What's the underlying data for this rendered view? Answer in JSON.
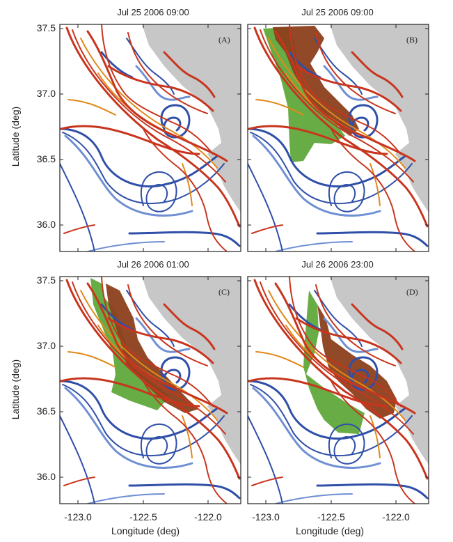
{
  "colors": {
    "land": "#c7c7c7",
    "blue": "#2f4fa8",
    "lightblue": "#6f8fd3",
    "red": "#c8351e",
    "orange": "#e08a1a",
    "green": "#5fa83a",
    "brown": "#8b3f1c"
  },
  "axes": {
    "ylabel": "Latitude (deg)",
    "xlabel": "Longitude (deg)",
    "yticks": [
      "37.5",
      "37.0",
      "36.5",
      "36.0"
    ],
    "xticks": [
      "-123.0",
      "-122.5",
      "-122.0"
    ]
  },
  "chart_data": [
    {
      "type": "map",
      "title": "Jul 25 2006 09:00",
      "label": "(A)",
      "xlim": [
        -123.1,
        -121.7
      ],
      "ylim": [
        35.8,
        37.5
      ],
      "patches": []
    },
    {
      "type": "map",
      "title": "Jul 25 2006 09:00",
      "label": "(B)",
      "xlim": [
        -123.1,
        -121.7
      ],
      "ylim": [
        35.8,
        37.5
      ],
      "patches": [
        "green",
        "brown"
      ]
    },
    {
      "type": "map",
      "title": "Jul 26 2006 01:00",
      "label": "(C)",
      "xlim": [
        -123.1,
        -121.7
      ],
      "ylim": [
        35.8,
        37.5
      ],
      "patches": [
        "green",
        "brown"
      ]
    },
    {
      "type": "map",
      "title": "Jul 26 2006 23:00",
      "label": "(D)",
      "xlim": [
        -123.1,
        -121.7
      ],
      "ylim": [
        35.8,
        37.5
      ],
      "patches": [
        "green",
        "brown"
      ]
    }
  ]
}
